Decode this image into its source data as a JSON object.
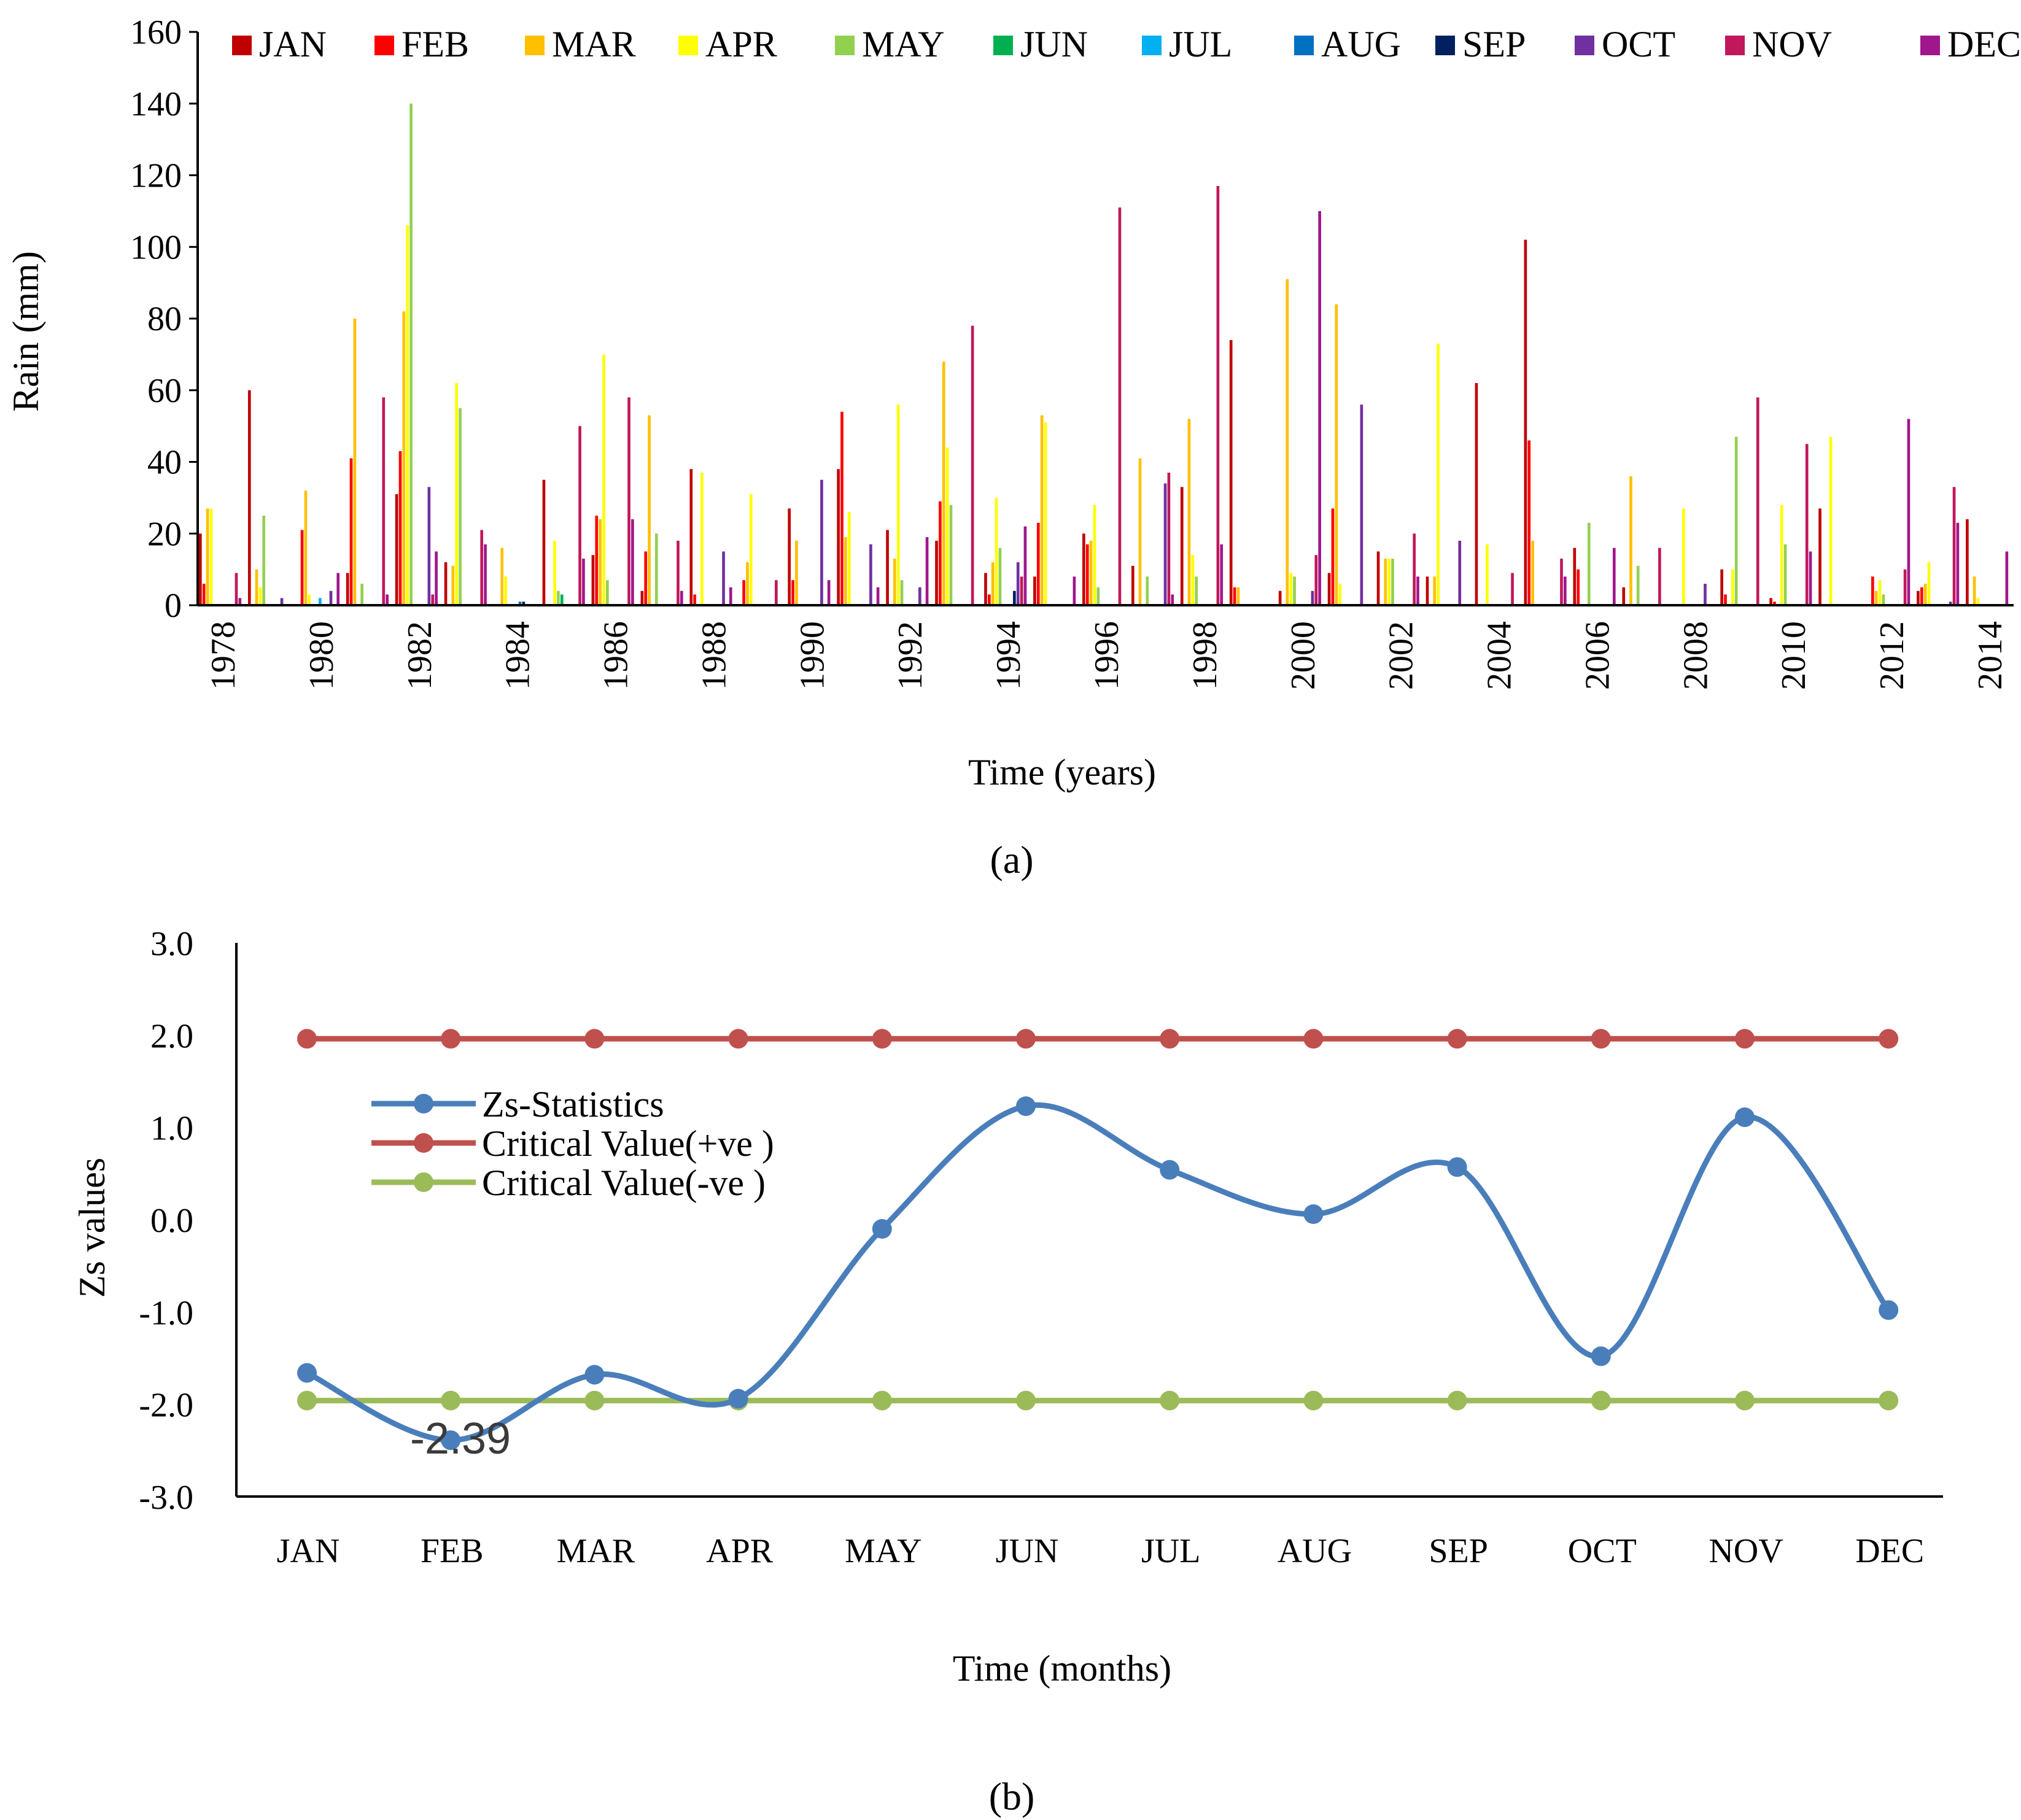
{
  "chart_data": [
    {
      "id": "a",
      "panel_label": "(a)",
      "type": "bar",
      "xlabel": "Time (years)",
      "ylabel": "Rain (mm)",
      "ylim": [
        0,
        160
      ],
      "yticks": [
        0,
        20,
        40,
        60,
        80,
        100,
        120,
        140,
        160
      ],
      "legend_position": "top",
      "grid": false,
      "x_start": 1978,
      "x_end": 2014,
      "xtick_labels": [
        "1978",
        "1980",
        "1982",
        "1984",
        "1986",
        "1988",
        "1990",
        "1992",
        "1994",
        "1996",
        "1998",
        "2000",
        "2002",
        "2004",
        "2006",
        "2008",
        "2010",
        "2012",
        "2014"
      ],
      "series": [
        {
          "name": "JAN",
          "color": "#c00000",
          "values": [
            20,
            60,
            0,
            9,
            31,
            12,
            0,
            35,
            14,
            4,
            38,
            0,
            27,
            38,
            21,
            18,
            9,
            8,
            20,
            11,
            33,
            74,
            4,
            9,
            15,
            8,
            62,
            102,
            16,
            5,
            0,
            10,
            2,
            27,
            0,
            4,
            24
          ]
        },
        {
          "name": "FEB",
          "color": "#ff0000",
          "values": [
            6,
            0,
            21,
            41,
            43,
            0,
            0,
            0,
            25,
            15,
            3,
            7,
            7,
            54,
            0,
            29,
            3,
            23,
            17,
            0,
            0,
            5,
            0,
            27,
            0,
            0,
            0,
            46,
            10,
            0,
            0,
            3,
            1,
            0,
            8,
            5,
            0
          ]
        },
        {
          "name": "MAR",
          "color": "#ffc000",
          "values": [
            27,
            10,
            32,
            80,
            82,
            11,
            16,
            0,
            24,
            53,
            0,
            12,
            18,
            19,
            13,
            68,
            12,
            53,
            18,
            41,
            52,
            5,
            91,
            84,
            13,
            8,
            0,
            18,
            0,
            36,
            0,
            0,
            0,
            0,
            4,
            6,
            8
          ]
        },
        {
          "name": "APR",
          "color": "#ffff00",
          "values": [
            27,
            5,
            3,
            0,
            106,
            62,
            8,
            18,
            70,
            0,
            37,
            31,
            0,
            26,
            56,
            44,
            30,
            51,
            28,
            0,
            14,
            0,
            9,
            6,
            13,
            73,
            17,
            0,
            0,
            0,
            27,
            10,
            28,
            47,
            7,
            12,
            2
          ]
        },
        {
          "name": "MAY",
          "color": "#92d050",
          "values": [
            0,
            25,
            0,
            6,
            140,
            55,
            0,
            4,
            7,
            20,
            0,
            0,
            0,
            0,
            7,
            28,
            16,
            0,
            5,
            8,
            8,
            0,
            8,
            0,
            13,
            0,
            0,
            0,
            23,
            11,
            0,
            47,
            17,
            0,
            3,
            0,
            0
          ]
        },
        {
          "name": "JUN",
          "color": "#00b050",
          "values": [
            0,
            0,
            0,
            0,
            0,
            0,
            0,
            3,
            0,
            0,
            0,
            0,
            0,
            0,
            0,
            0,
            0,
            0,
            0,
            0,
            0,
            0,
            0,
            0,
            0,
            0,
            0,
            0,
            0,
            0,
            0,
            0,
            0,
            0,
            0,
            0,
            0
          ]
        },
        {
          "name": "JUL",
          "color": "#00b0f0",
          "values": [
            0,
            0,
            2,
            0,
            0,
            0,
            0,
            0,
            0,
            0,
            0,
            0,
            0,
            0,
            0,
            0,
            0,
            0,
            0,
            0,
            0,
            0,
            0,
            0,
            0,
            0,
            0,
            0,
            0,
            0,
            0,
            0,
            0,
            0,
            0,
            0,
            0
          ]
        },
        {
          "name": "AUG",
          "color": "#0070c0",
          "values": [
            0,
            0,
            0,
            0,
            0,
            0,
            1,
            0,
            0,
            0,
            0,
            0,
            0,
            0,
            0,
            0,
            0,
            0,
            0,
            0,
            0,
            0,
            0,
            0,
            0,
            0,
            0,
            0,
            0,
            0,
            0,
            0,
            0,
            0,
            0,
            0,
            0
          ]
        },
        {
          "name": "SEP",
          "color": "#002060",
          "values": [
            0,
            0,
            0,
            0,
            0,
            0,
            1,
            0,
            0,
            0,
            0,
            0,
            0,
            0,
            0,
            0,
            4,
            0,
            0,
            0,
            0,
            0,
            0,
            0,
            0,
            0,
            0,
            0,
            0,
            0,
            0,
            0,
            0,
            0,
            0,
            0,
            0
          ]
        },
        {
          "name": "OCT",
          "color": "#7030a0",
          "values": [
            0,
            2,
            4,
            0,
            33,
            0,
            0,
            0,
            0,
            0,
            15,
            0,
            35,
            17,
            5,
            0,
            12,
            0,
            0,
            34,
            0,
            0,
            4,
            56,
            0,
            18,
            0,
            0,
            0,
            0,
            6,
            0,
            0,
            0,
            0,
            1,
            0
          ]
        },
        {
          "name": "NOV",
          "color": "#c0185a",
          "values": [
            9,
            0,
            0,
            58,
            3,
            21,
            0,
            50,
            58,
            18,
            0,
            7,
            0,
            0,
            0,
            78,
            8,
            0,
            111,
            37,
            117,
            0,
            14,
            0,
            20,
            0,
            9,
            13,
            0,
            16,
            0,
            58,
            45,
            0,
            10,
            33,
            0
          ]
        },
        {
          "name": "DEC",
          "color": "#a0168c",
          "values": [
            2,
            0,
            9,
            3,
            15,
            17,
            0,
            13,
            24,
            4,
            5,
            0,
            7,
            5,
            19,
            0,
            22,
            8,
            0,
            3,
            17,
            0,
            110,
            0,
            8,
            0,
            0,
            8,
            16,
            0,
            0,
            0,
            15,
            0,
            52,
            23,
            15
          ]
        }
      ]
    },
    {
      "id": "b",
      "panel_label": "(b)",
      "type": "line",
      "xlabel": "Time (months)",
      "ylabel": "Zs values",
      "ylim": [
        -3.0,
        3.0
      ],
      "yticks": [
        3.0,
        2.0,
        1.0,
        0.0,
        -1.0,
        -2.0,
        -3.0
      ],
      "ytick_labels": [
        "3.0",
        "2.0",
        "1.0",
        "0.0",
        "-1.0",
        "-2.0",
        "-3.0"
      ],
      "categories": [
        "JAN",
        "FEB",
        "MAR",
        "APR",
        "MAY",
        "JUN",
        "JUL",
        "AUG",
        "SEP",
        "OCT",
        "NOV",
        "DEC"
      ],
      "legend_position": "upper-left",
      "grid": false,
      "series": [
        {
          "name": "Zs-Statistics",
          "color": "#4a7ebb",
          "smooth": true,
          "values": [
            -1.66,
            -2.39,
            -1.68,
            -1.94,
            -0.1,
            1.23,
            0.54,
            0.06,
            0.57,
            -1.48,
            1.11,
            -0.98
          ]
        },
        {
          "name": "Critical  Value(+ve )",
          "color": "#c0504d",
          "smooth": false,
          "values": [
            1.96,
            1.96,
            1.96,
            1.96,
            1.96,
            1.96,
            1.96,
            1.96,
            1.96,
            1.96,
            1.96,
            1.96
          ]
        },
        {
          "name": "Critical  Value(-ve )",
          "color": "#9bbb59",
          "smooth": false,
          "values": [
            -1.96,
            -1.96,
            -1.96,
            -1.96,
            -1.96,
            -1.96,
            -1.96,
            -1.96,
            -1.96,
            -1.96,
            -1.96,
            -1.96
          ]
        }
      ],
      "annotations": [
        {
          "text": "-2.39",
          "series": "Zs-Statistics",
          "category": "FEB"
        }
      ]
    }
  ]
}
